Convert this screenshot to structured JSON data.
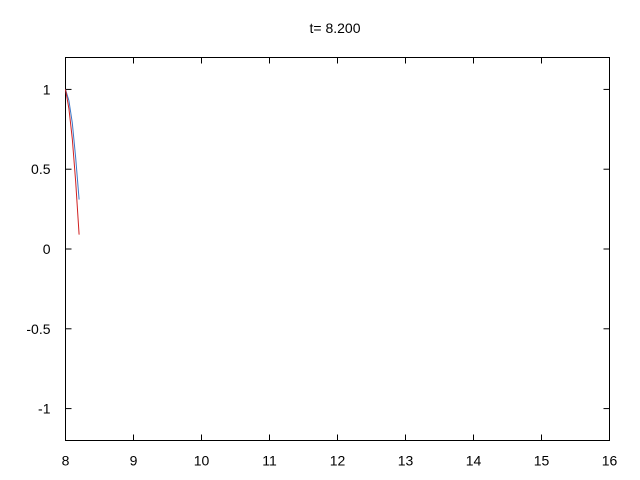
{
  "chart_data": {
    "type": "line",
    "title": "t= 8.200",
    "xlabel": "",
    "ylabel": "",
    "xlim": [
      8,
      16
    ],
    "ylim": [
      -1.2,
      1.2
    ],
    "xticks": [
      8,
      9,
      10,
      11,
      12,
      13,
      14,
      15,
      16
    ],
    "xtick_labels": [
      "8",
      "9",
      "10",
      "11",
      "12",
      "13",
      "14",
      "15",
      "16"
    ],
    "yticks": [
      1,
      0.5,
      0,
      -0.5,
      -1
    ],
    "ytick_labels": [
      "1",
      "0.5",
      "0",
      "-0.5",
      "-1"
    ],
    "grid": false,
    "series": [
      {
        "color": "#3b78c8",
        "x": [
          8.0,
          8.05,
          8.1,
          8.15,
          8.2
        ],
        "y": [
          1.0,
          0.93,
          0.79,
          0.57,
          0.31
        ]
      },
      {
        "color": "#d01f1f",
        "x": [
          8.0,
          8.05,
          8.1,
          8.15,
          8.2
        ],
        "y": [
          1.0,
          0.88,
          0.69,
          0.42,
          0.09
        ]
      }
    ]
  }
}
